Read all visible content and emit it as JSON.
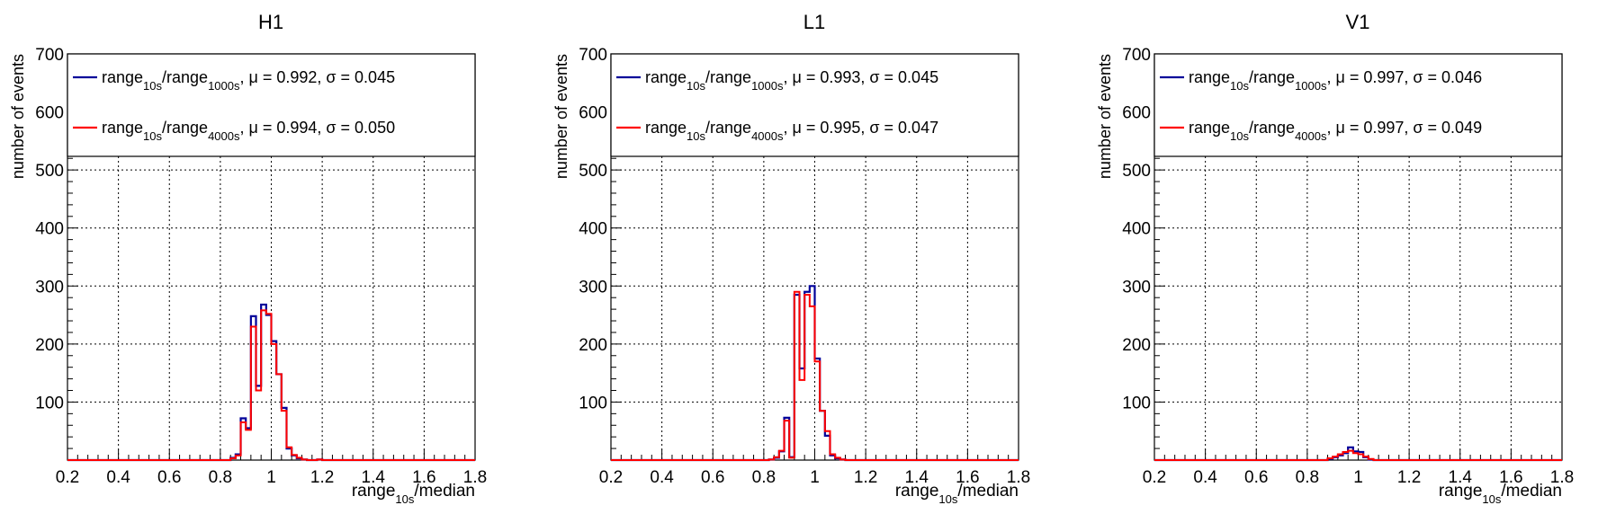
{
  "chart_data": [
    {
      "type": "histogram",
      "title": "H1",
      "xlabel": {
        "main": "range",
        "sub": "10s",
        "rest": "/median"
      },
      "ylabel": "number of events",
      "xlim": [
        0.2,
        1.8
      ],
      "ylim": [
        0,
        700
      ],
      "x_ticks": [
        "0.2",
        "0.4",
        "0.6",
        "0.8",
        "1",
        "1.2",
        "1.4",
        "1.6",
        "1.8"
      ],
      "y_ticks": [
        "100",
        "200",
        "300",
        "400",
        "500",
        "600",
        "700"
      ],
      "grid": true,
      "legend": [
        {
          "main": "range",
          "sub1": "10s",
          "mid": "/range",
          "sub2": "1000s",
          "stats": ", μ = 0.992, σ = 0.045",
          "color": "#000099"
        },
        {
          "main": "range",
          "sub1": "10s",
          "mid": "/range",
          "sub2": "4000s",
          "stats": ", μ = 0.994, σ = 0.050",
          "color": "#ff0000"
        }
      ],
      "bin_edges_start": 0.2,
      "bin_width": 0.02,
      "series": [
        {
          "color": "#000099",
          "values": [
            0,
            0,
            0,
            0,
            0,
            0,
            0,
            0,
            0,
            0,
            0,
            0,
            0,
            0,
            0,
            0,
            0,
            0,
            0,
            0,
            0,
            0,
            0,
            0,
            0,
            0,
            0,
            0,
            0,
            0,
            0,
            0,
            4,
            10,
            72,
            55,
            248,
            128,
            268,
            250,
            205,
            148,
            90,
            20,
            8,
            3,
            1,
            0,
            0,
            1,
            0,
            0,
            0,
            0,
            0,
            0,
            0,
            0,
            0,
            0,
            0,
            0,
            0,
            0,
            0,
            0,
            0,
            0,
            0,
            0,
            0,
            0,
            0,
            0,
            0,
            0,
            0,
            0,
            0,
            0
          ]
        },
        {
          "color": "#ff0000",
          "values": [
            0,
            0,
            0,
            0,
            0,
            0,
            0,
            0,
            0,
            0,
            0,
            0,
            0,
            0,
            0,
            0,
            0,
            0,
            0,
            0,
            0,
            0,
            0,
            0,
            0,
            0,
            0,
            0,
            0,
            0,
            0,
            0,
            3,
            8,
            65,
            52,
            230,
            120,
            258,
            252,
            200,
            148,
            85,
            22,
            9,
            4,
            1,
            0,
            0,
            1,
            0,
            0,
            0,
            0,
            0,
            0,
            0,
            0,
            0,
            0,
            0,
            0,
            0,
            0,
            0,
            0,
            0,
            0,
            0,
            0,
            0,
            0,
            0,
            0,
            0,
            0,
            0,
            0,
            0,
            0
          ]
        }
      ]
    },
    {
      "type": "histogram",
      "title": "L1",
      "xlabel": {
        "main": "range",
        "sub": "10s",
        "rest": "/median"
      },
      "ylabel": "number of events",
      "xlim": [
        0.2,
        1.8
      ],
      "ylim": [
        0,
        700
      ],
      "x_ticks": [
        "0.2",
        "0.4",
        "0.6",
        "0.8",
        "1",
        "1.2",
        "1.4",
        "1.6",
        "1.8"
      ],
      "y_ticks": [
        "100",
        "200",
        "300",
        "400",
        "500",
        "600",
        "700"
      ],
      "grid": true,
      "legend": [
        {
          "main": "range",
          "sub1": "10s",
          "mid": "/range",
          "sub2": "1000s",
          "stats": ", μ = 0.993, σ = 0.045",
          "color": "#000099"
        },
        {
          "main": "range",
          "sub1": "10s",
          "mid": "/range",
          "sub2": "4000s",
          "stats": ", μ = 0.995, σ = 0.047",
          "color": "#ff0000"
        }
      ],
      "bin_edges_start": 0.2,
      "bin_width": 0.02,
      "series": [
        {
          "color": "#000099",
          "values": [
            0,
            0,
            0,
            0,
            0,
            0,
            0,
            0,
            0,
            0,
            0,
            0,
            0,
            0,
            0,
            0,
            0,
            0,
            0,
            0,
            0,
            0,
            0,
            0,
            0,
            0,
            0,
            0,
            0,
            0,
            0,
            1,
            4,
            15,
            73,
            5,
            285,
            158,
            290,
            300,
            175,
            85,
            42,
            8,
            3,
            1,
            0,
            0,
            0,
            0,
            0,
            0,
            0,
            0,
            0,
            0,
            0,
            0,
            0,
            0,
            0,
            0,
            0,
            0,
            0,
            0,
            0,
            0,
            0,
            0,
            0,
            0,
            0,
            0,
            0,
            0,
            0,
            0,
            0,
            0
          ]
        },
        {
          "color": "#ff0000",
          "values": [
            0,
            0,
            0,
            0,
            0,
            0,
            0,
            0,
            0,
            0,
            0,
            0,
            0,
            0,
            0,
            0,
            0,
            0,
            0,
            0,
            0,
            0,
            0,
            0,
            0,
            0,
            0,
            0,
            0,
            0,
            0,
            1,
            5,
            16,
            68,
            4,
            290,
            138,
            285,
            265,
            170,
            85,
            50,
            10,
            4,
            1,
            0,
            0,
            0,
            0,
            0,
            0,
            0,
            0,
            0,
            0,
            0,
            0,
            0,
            0,
            0,
            0,
            0,
            0,
            0,
            0,
            0,
            0,
            0,
            0,
            0,
            0,
            0,
            0,
            0,
            0,
            0,
            0,
            0,
            0
          ]
        }
      ]
    },
    {
      "type": "histogram",
      "title": "V1",
      "xlabel": {
        "main": "range",
        "sub": "10s",
        "rest": "/median"
      },
      "ylabel": "number of events",
      "xlim": [
        0.2,
        1.8
      ],
      "ylim": [
        0,
        700
      ],
      "x_ticks": [
        "0.2",
        "0.4",
        "0.6",
        "0.8",
        "1",
        "1.2",
        "1.4",
        "1.6",
        "1.8"
      ],
      "y_ticks": [
        "100",
        "200",
        "300",
        "400",
        "500",
        "600",
        "700"
      ],
      "grid": true,
      "legend": [
        {
          "main": "range",
          "sub1": "10s",
          "mid": "/range",
          "sub2": "1000s",
          "stats": ", μ = 0.997, σ = 0.046",
          "color": "#000099"
        },
        {
          "main": "range",
          "sub1": "10s",
          "mid": "/range",
          "sub2": "4000s",
          "stats": ", μ = 0.997, σ = 0.049",
          "color": "#ff0000"
        }
      ],
      "bin_edges_start": 0.2,
      "bin_width": 0.02,
      "series": [
        {
          "color": "#000099",
          "values": [
            0,
            0,
            0,
            0,
            0,
            0,
            0,
            0,
            0,
            0,
            0,
            0,
            0,
            0,
            0,
            0,
            0,
            0,
            0,
            0,
            0,
            0,
            0,
            0,
            0,
            0,
            0,
            0,
            0,
            0,
            0,
            0,
            0,
            0,
            2,
            5,
            8,
            12,
            22,
            15,
            14,
            5,
            1,
            0,
            0,
            0,
            0,
            0,
            0,
            0,
            0,
            0,
            0,
            0,
            0,
            0,
            0,
            0,
            0,
            0,
            0,
            0,
            0,
            0,
            0,
            0,
            0,
            0,
            0,
            0,
            0,
            0,
            0,
            0,
            0,
            0,
            0,
            0,
            0,
            0
          ]
        },
        {
          "color": "#ff0000",
          "values": [
            0,
            0,
            0,
            0,
            0,
            0,
            0,
            0,
            0,
            0,
            0,
            0,
            0,
            0,
            0,
            0,
            0,
            0,
            0,
            0,
            0,
            0,
            0,
            0,
            0,
            0,
            0,
            0,
            0,
            0,
            0,
            0,
            0,
            0,
            3,
            6,
            10,
            14,
            16,
            12,
            10,
            6,
            2,
            0,
            0,
            0,
            0,
            0,
            0,
            0,
            0,
            0,
            0,
            0,
            0,
            0,
            0,
            0,
            0,
            0,
            0,
            0,
            0,
            0,
            0,
            0,
            0,
            0,
            0,
            0,
            0,
            0,
            0,
            0,
            0,
            0,
            0,
            0,
            0,
            0
          ]
        }
      ]
    }
  ]
}
